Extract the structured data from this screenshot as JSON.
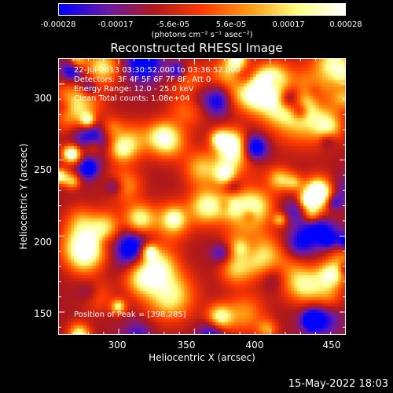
{
  "colorbar": {
    "tick_labels": [
      "-0.00028",
      "-0.00017",
      "-5.6e-05",
      "5.6e-05",
      "0.00017",
      "0.00028"
    ],
    "units_label": "(photons cm⁻² s⁻¹ asec⁻²)",
    "range": [
      -0.00028,
      0.00028
    ],
    "colors": [
      "#0000ff",
      "#6a1aa8",
      "#b0181a",
      "#ff3a00",
      "#ff9a10",
      "#ffff80",
      "#ffffff"
    ]
  },
  "chart_data": {
    "type": "heatmap",
    "title": "Reconstructed RHESSI Image",
    "xlabel": "Heliocentric X (arcsec)",
    "ylabel": "Heliocentric Y (arcsec)",
    "xlim": [
      260,
      450
    ],
    "ylim": [
      135,
      317
    ],
    "x_ticks": [
      300,
      350,
      400,
      450
    ],
    "y_ticks": [
      150,
      200,
      250,
      300
    ],
    "annotations": [
      "22-Jul-2013 03:30:52.000 to 03:36:52.000",
      "Detectors: 3F 4F 5F 6F 7F 8F, Att 0",
      "Energy Range: 12.0 - 25.0 keV",
      "Clean     Total counts: 1.08e+04",
      "Position of Peak = [398,285]"
    ],
    "peak_position": [
      398,
      285
    ]
  },
  "footer": {
    "date": "15-May-2022 18:03"
  }
}
